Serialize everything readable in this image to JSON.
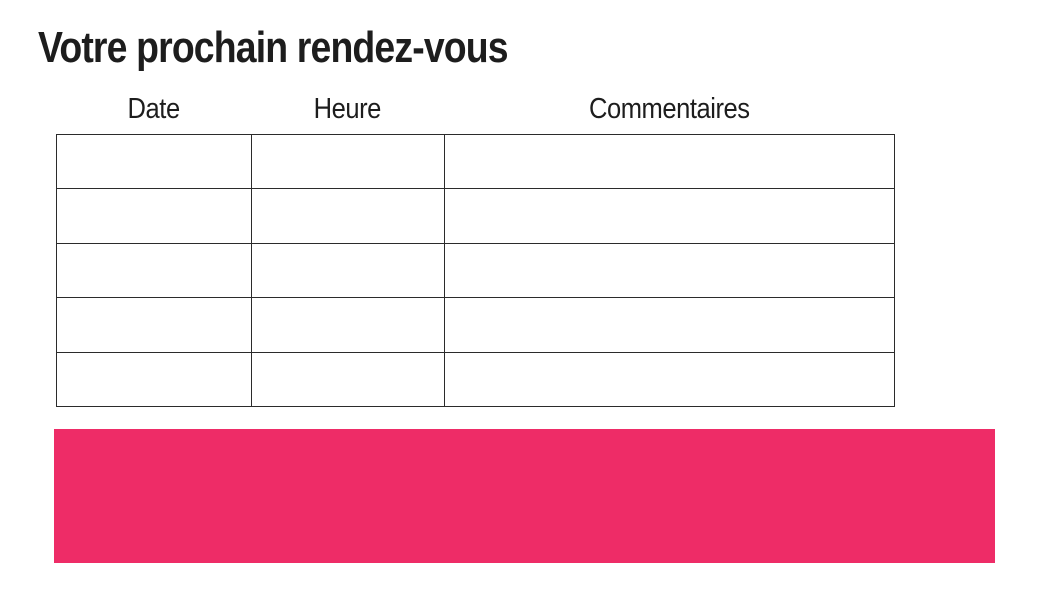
{
  "page": {
    "title": "Votre prochain rendez-vous"
  },
  "table": {
    "headers": [
      "Date",
      "Heure",
      "Commentaires"
    ],
    "rows": [
      [
        "",
        "",
        ""
      ],
      [
        "",
        "",
        ""
      ],
      [
        "",
        "",
        ""
      ],
      [
        "",
        "",
        ""
      ],
      [
        "",
        "",
        ""
      ]
    ]
  },
  "colors": {
    "accent_pink": "#EE2C67",
    "table_border": "#2b2b2b",
    "text": "#1d1d1d",
    "background": "#ffffff"
  }
}
